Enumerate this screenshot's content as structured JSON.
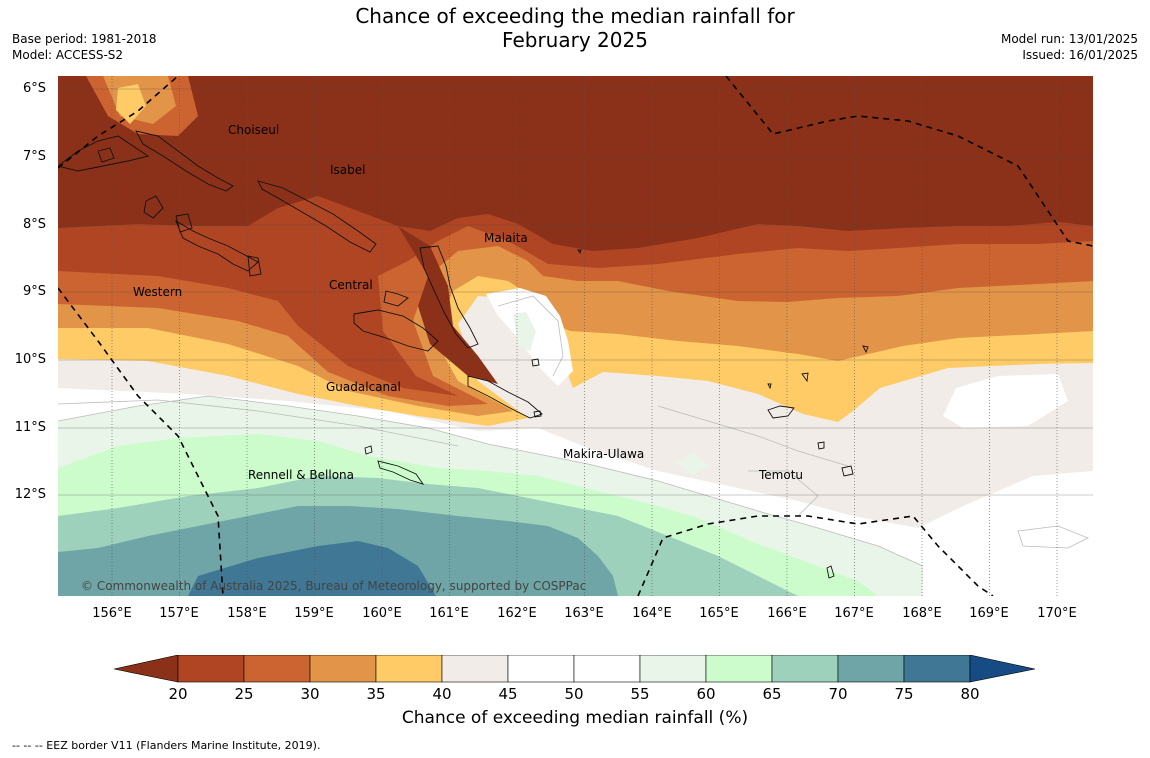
{
  "title_line1": "Chance of exceeding the median rainfall for",
  "title_line2": "February 2025",
  "base_period": "Base period: 1981-2018",
  "model": "Model: ACCESS-S2",
  "model_run": "Model run: 13/01/2025",
  "issued": "Issued: 16/01/2025",
  "lat_labels": [
    "6°S",
    "7°S",
    "8°S",
    "9°S",
    "10°S",
    "11°S",
    "12°S"
  ],
  "lon_labels": [
    "156°E",
    "157°E",
    "158°E",
    "159°E",
    "160°E",
    "161°E",
    "162°E",
    "163°E",
    "164°E",
    "165°E",
    "166°E",
    "167°E",
    "168°E",
    "169°E",
    "170°E"
  ],
  "regions": {
    "choiseul": "Choiseul",
    "isabel": "Isabel",
    "malaita": "Malaita",
    "central": "Central",
    "western": "Western",
    "guadalcanal": "Guadalcanal",
    "makira_ulawa": "Makira-Ulawa",
    "temotu": "Temotu",
    "rennell_bellona": "Rennell & Bellona"
  },
  "copyright": "© Commonwealth of Australia 2025, Bureau of Meteorology, supported by COSPPac",
  "colorbar": {
    "title": "Chance of exceeding median rainfall (%)",
    "ticks": [
      "20",
      "25",
      "30",
      "35",
      "40",
      "45",
      "50",
      "55",
      "60",
      "65",
      "70",
      "75",
      "80"
    ],
    "colors": {
      "below_20": "#8c3119",
      "b20_25": "#b04524",
      "b25_30": "#cc6431",
      "b30_35": "#e29448",
      "b35_40": "#fecb66",
      "b40_45": "#f1ece7",
      "b45_50": "#ffffff",
      "b50_55": "#ffffff",
      "b55_60": "#e9f5e8",
      "b60_65": "#ccfccc",
      "b65_70": "#9ed1bc",
      "b70_75": "#6fa5a6",
      "b75_80": "#3f7795",
      "above_80": "#164b84"
    }
  },
  "footnote": "--  --  -- EEZ border V11 (Flanders Marine Institute, 2019)."
}
